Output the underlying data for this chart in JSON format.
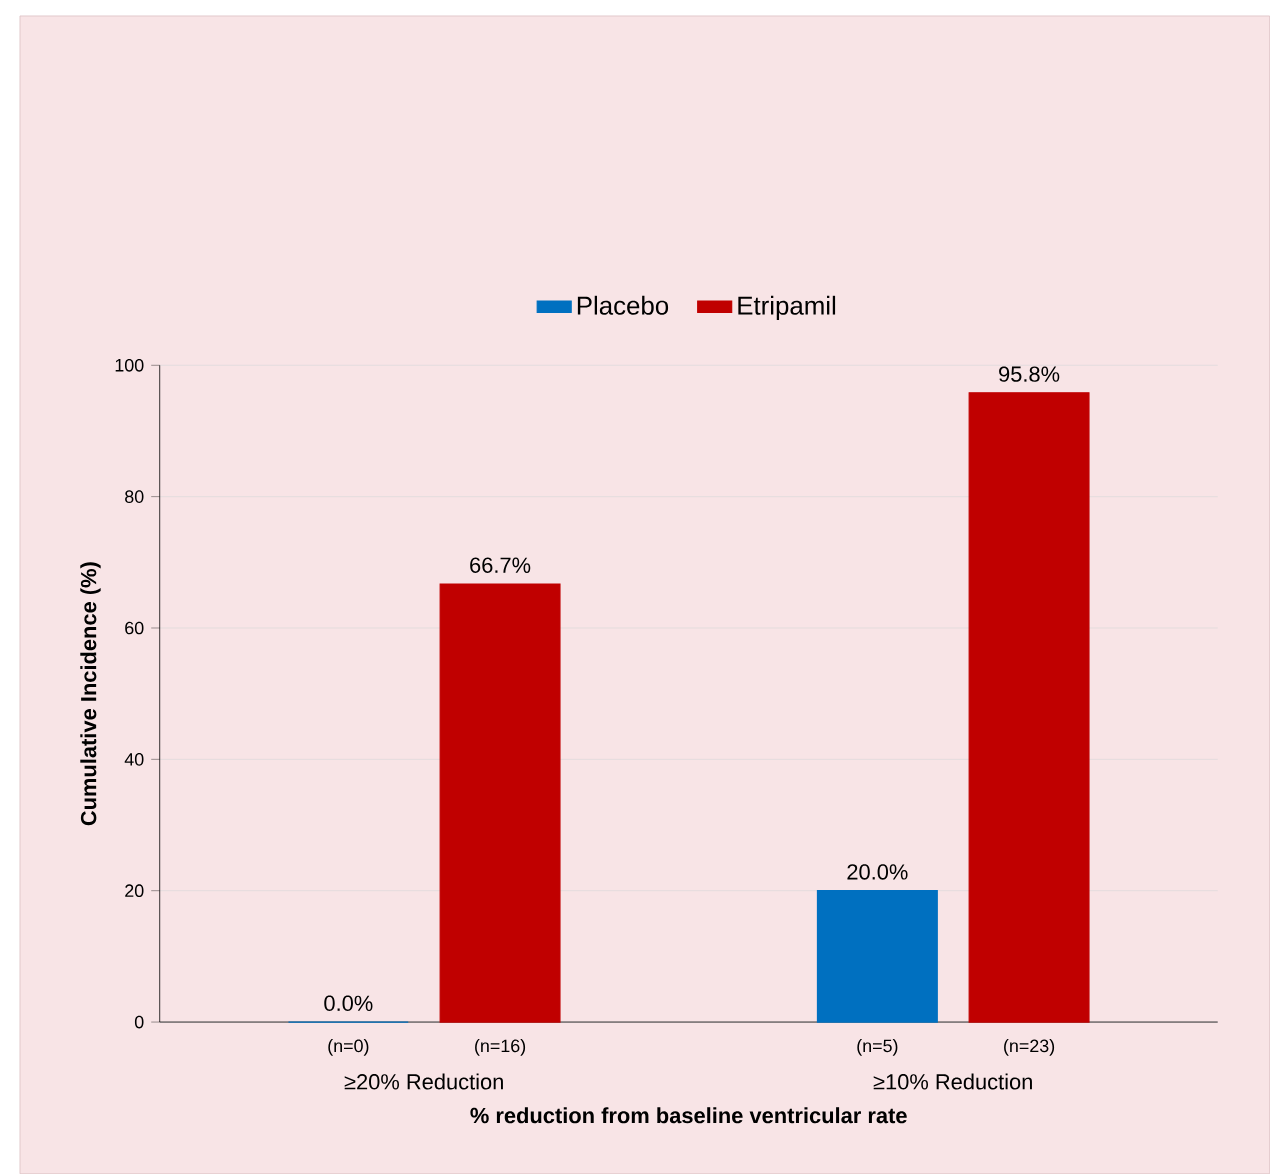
{
  "chart_data": {
    "type": "bar",
    "xlabel": "% reduction from baseline ventricular rate",
    "ylabel": "Cumulative Incidence (%)",
    "categories": [
      "≥20% Reduction",
      "≥10% Reduction"
    ],
    "series": [
      {
        "name": "Placebo",
        "color": "#0070c0",
        "values": [
          0.0,
          20.0
        ],
        "value_labels": [
          "0.0%",
          "20.0%"
        ]
      },
      {
        "name": "Etripamil",
        "color": "#c00000",
        "values": [
          66.7,
          95.8
        ],
        "value_labels": [
          "66.7%",
          "95.8%"
        ]
      }
    ],
    "annotations": [
      "(n=0)",
      "(n=16)",
      "(n=5)",
      "(n=23)"
    ],
    "ylim": [
      0,
      100
    ],
    "yticks": [
      0,
      20,
      40,
      60,
      80,
      100
    ],
    "grid": "y",
    "legend": "top"
  }
}
